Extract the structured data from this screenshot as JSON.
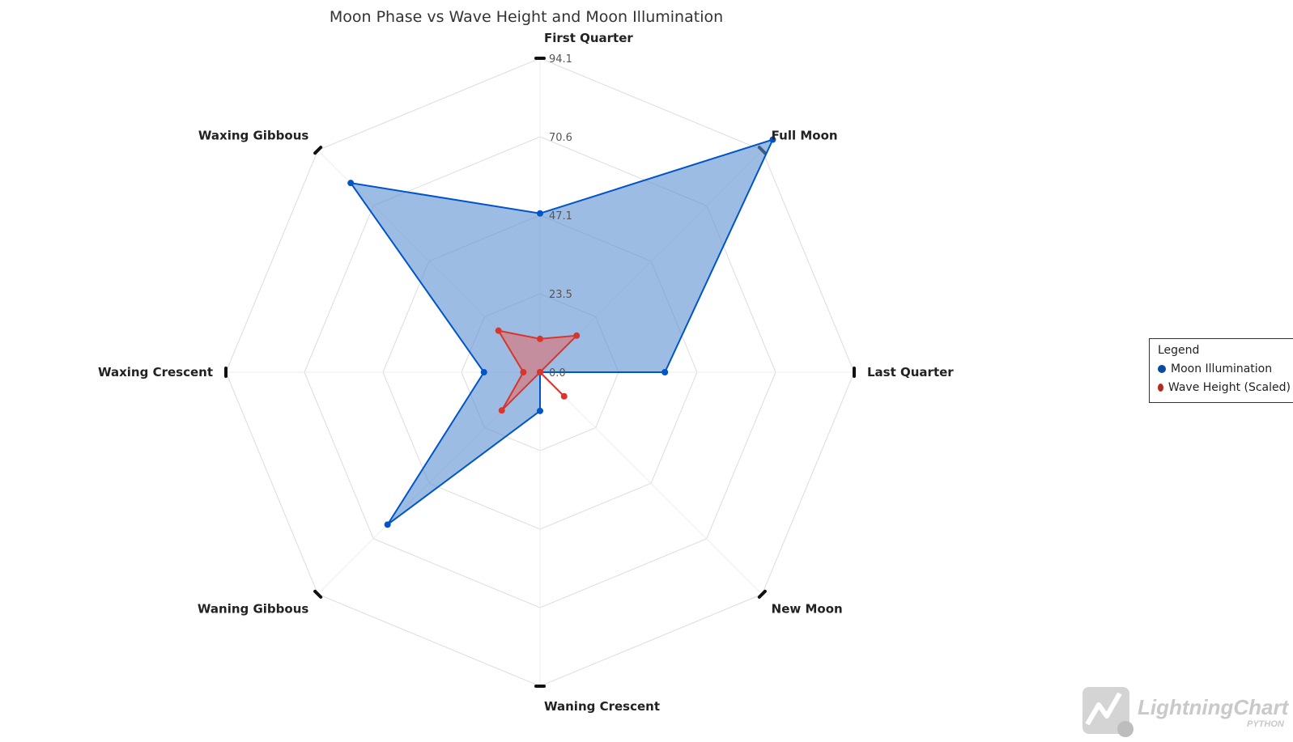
{
  "chart_data": {
    "type": "radar",
    "title": "Moon Phase vs Wave Height and Moon Illumination",
    "axes": [
      "First Quarter",
      "Full Moon",
      "Last Quarter",
      "New Moon",
      "Waning Crescent",
      "Waning Gibbous",
      "Waxing Crescent",
      "Waxing Gibbous"
    ],
    "tick_labels": [
      "0.0",
      "23.5",
      "47.1",
      "70.6",
      "94.1"
    ],
    "range": [
      0,
      94.1
    ],
    "grid": true,
    "legend_position": "right",
    "legend_title": "Legend",
    "series": [
      {
        "name": "Moon Illumination",
        "color": "#0055c8",
        "fill": "#5b8fd0",
        "values": [
          47.6,
          98.6,
          37.4,
          0.0,
          11.6,
          64.6,
          16.8,
          80.2
        ]
      },
      {
        "name": "Wave Height (Scaled)",
        "color": "#d9352b",
        "fill": "#e07070",
        "values": [
          10.0,
          15.5,
          0.0,
          10.2,
          0.0,
          16.2,
          5.0,
          17.6
        ]
      }
    ]
  },
  "watermark": {
    "text": "LightningChart",
    "sub": "PYTHON"
  }
}
